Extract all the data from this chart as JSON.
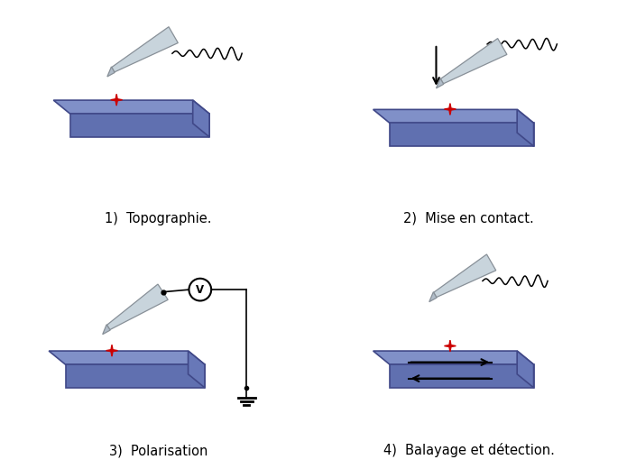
{
  "labels": [
    "1)  Topographie.",
    "2)  Mise en contact.",
    "3)  Polarisation",
    "4)  Balayage et détection."
  ],
  "bg_color": "#ffffff",
  "plate_top_color": "#8090c8",
  "plate_front_color": "#6070b0",
  "plate_right_color": "#6878b8",
  "plate_edge_color": "#404888",
  "cantilever_face": "#c8d4dc",
  "cantilever_edge": "#889098",
  "tip_face": "#b0bcc8",
  "star_color": "#cc0000",
  "label_fontsize": 10.5,
  "spring_color": "#000000"
}
